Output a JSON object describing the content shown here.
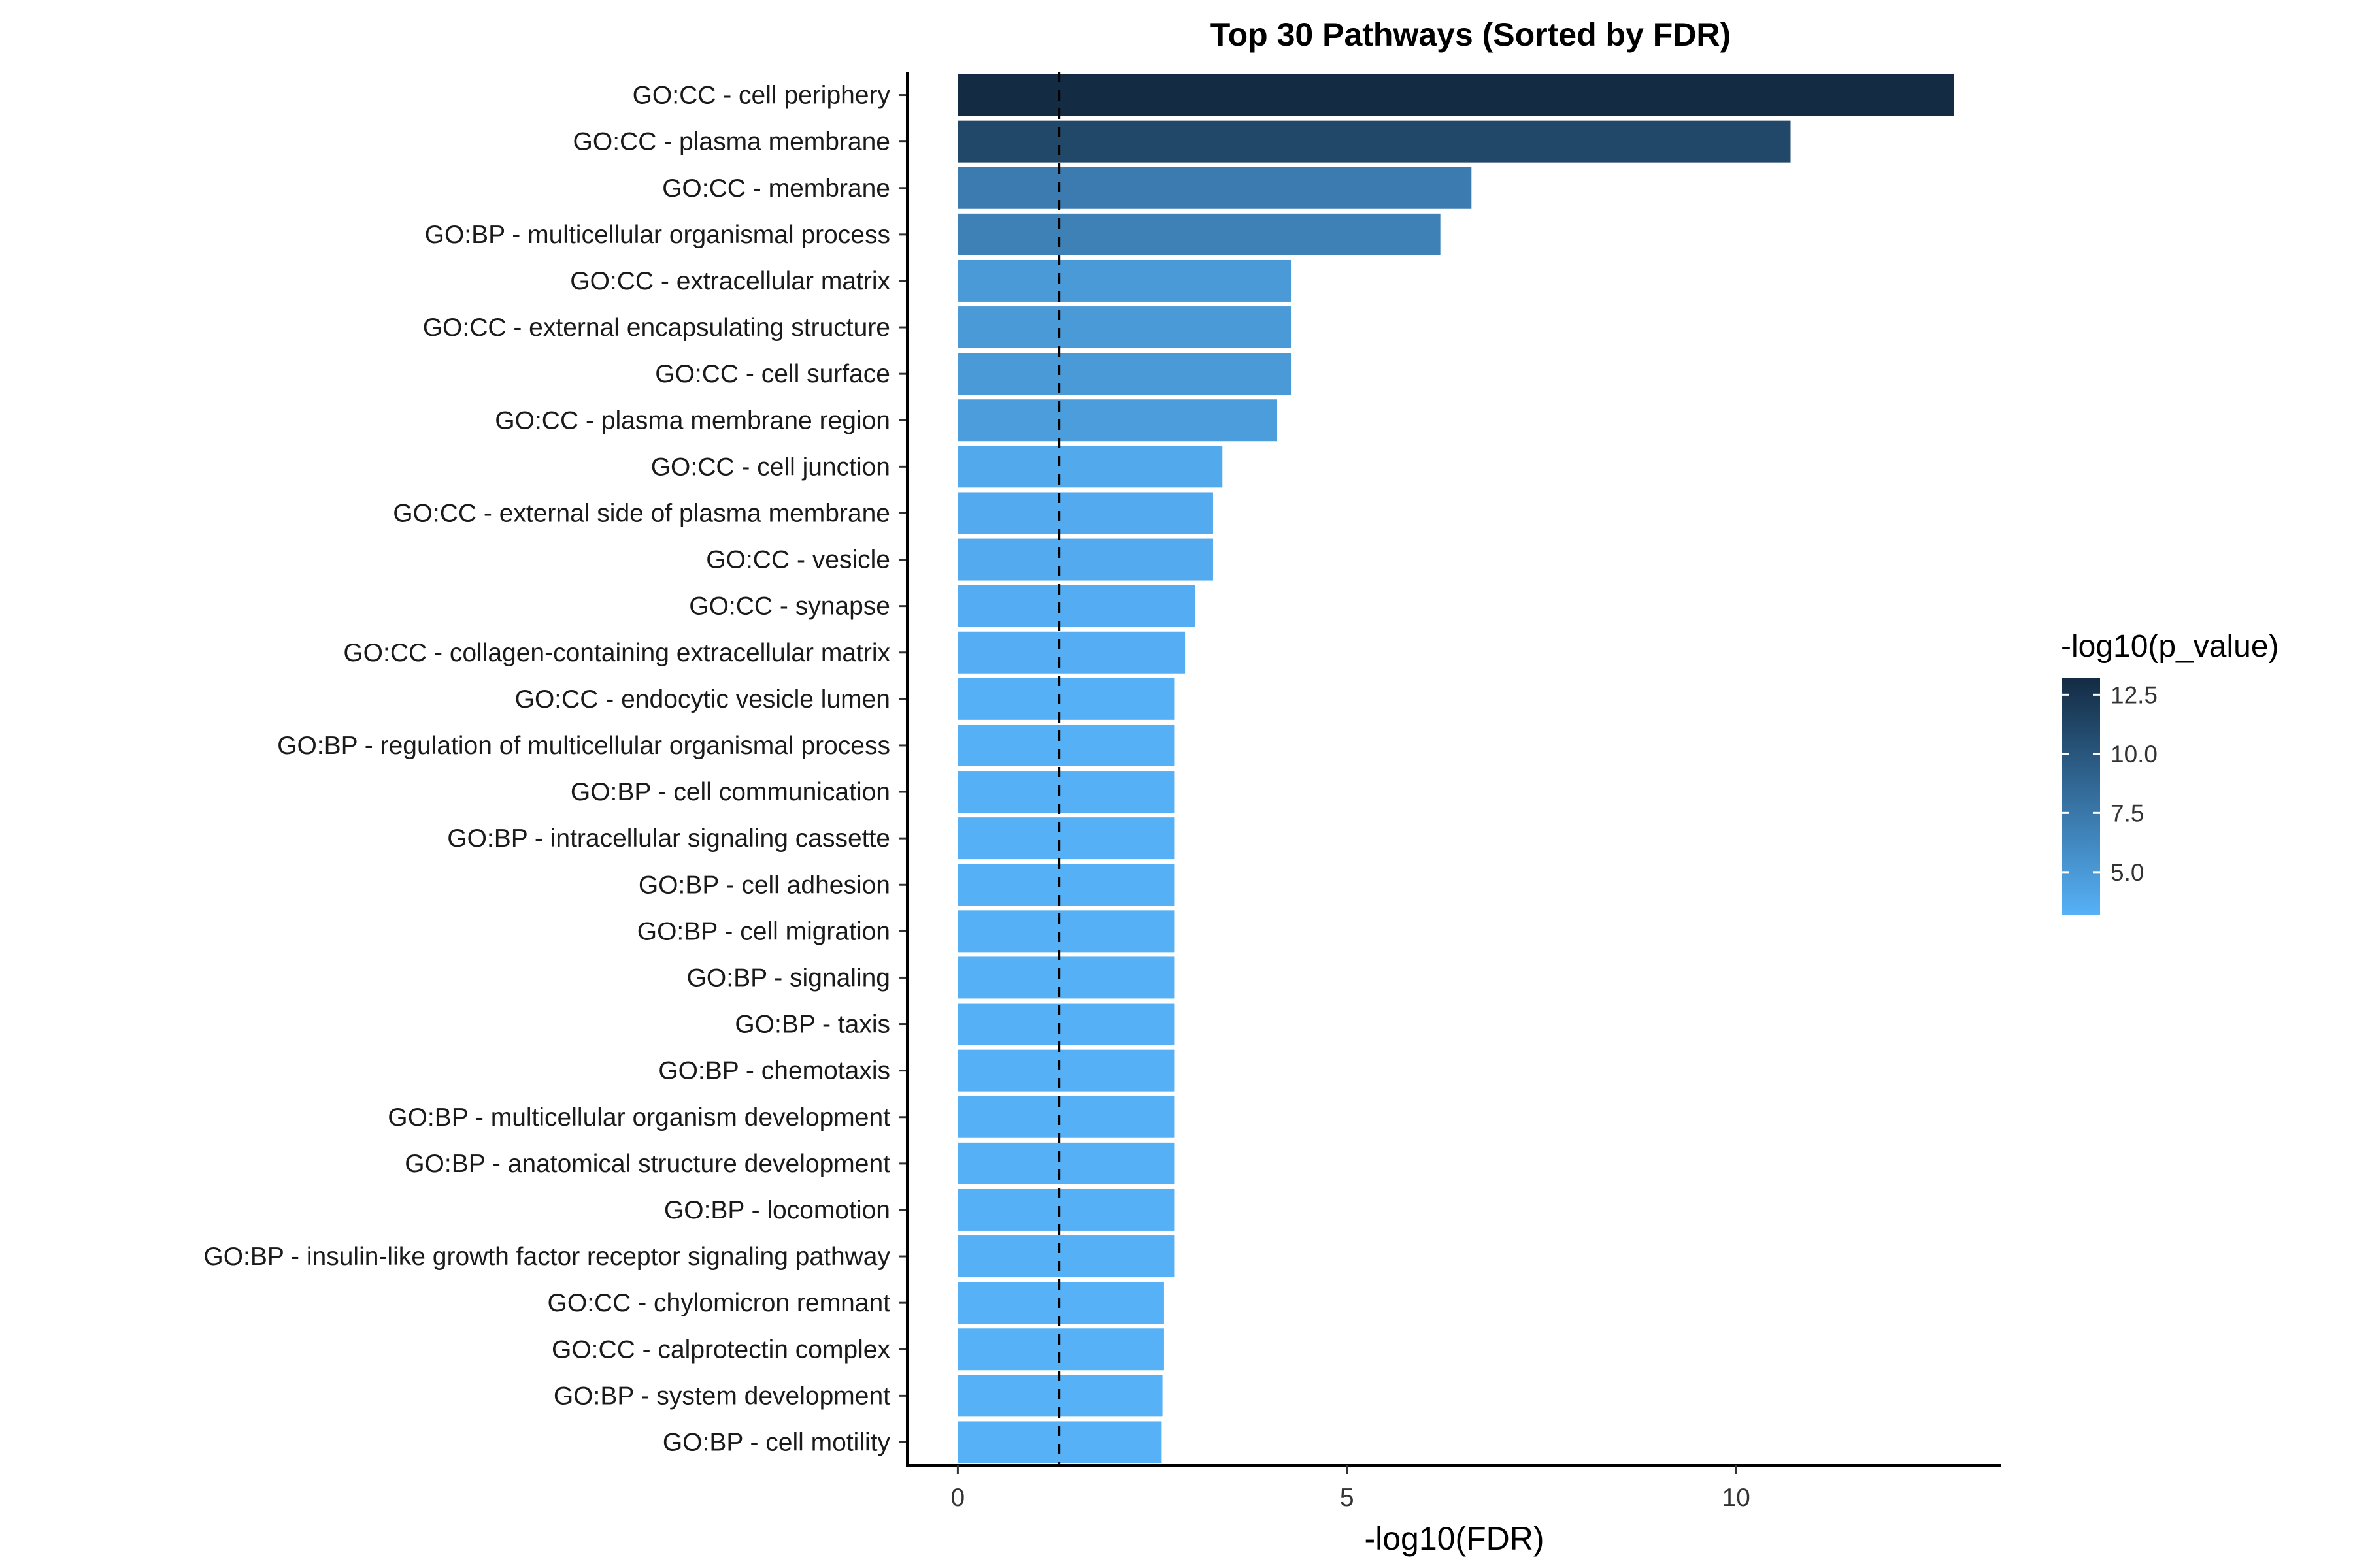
{
  "chart_data": {
    "type": "bar",
    "orientation": "horizontal",
    "title": "Top 30 Pathways (Sorted by FDR)",
    "xlabel": "-log10(FDR)",
    "ylabel": "",
    "xlim": [
      -0.65,
      13.4
    ],
    "x_ticks": [
      0,
      5,
      10
    ],
    "x_tick_labels": [
      "0",
      "5",
      "10"
    ],
    "reference_line": 1.3,
    "grid": false,
    "legend_position": "right",
    "color_scale": {
      "title": "-log10(p_value)",
      "min": 3.2,
      "max": 13.2,
      "low_color": "#56b1f7",
      "high_color": "#132b43",
      "ticks": [
        5.0,
        7.5,
        10.0,
        12.5
      ],
      "tick_labels": [
        "5.0",
        "7.5",
        "10.0",
        "12.5"
      ]
    },
    "categories": [
      "GO:CC - cell periphery",
      "GO:CC - plasma membrane",
      "GO:CC - membrane",
      "GO:BP - multicellular organismal process",
      "GO:CC - extracellular matrix",
      "GO:CC - external encapsulating structure",
      "GO:CC - cell surface",
      "GO:CC - plasma membrane region",
      "GO:CC - cell junction",
      "GO:CC - external side of plasma membrane",
      "GO:CC - vesicle",
      "GO:CC - synapse",
      "GO:CC - collagen-containing extracellular matrix",
      "GO:CC - endocytic vesicle lumen",
      "GO:BP - regulation of multicellular organismal process",
      "GO:BP - cell communication",
      "GO:BP - intracellular signaling cassette",
      "GO:BP - cell adhesion",
      "GO:BP - cell migration",
      "GO:BP - signaling",
      "GO:BP - taxis",
      "GO:BP - chemotaxis",
      "GO:BP - multicellular organism development",
      "GO:BP - anatomical structure development",
      "GO:BP - locomotion",
      "GO:BP - insulin-like growth factor receptor signaling pathway",
      "GO:CC - chylomicron remnant",
      "GO:CC - calprotectin complex",
      "GO:BP - system development",
      "GO:BP - cell motility"
    ],
    "values": [
      12.8,
      10.7,
      6.6,
      6.2,
      4.28,
      4.28,
      4.28,
      4.1,
      3.4,
      3.28,
      3.28,
      3.05,
      2.92,
      2.78,
      2.78,
      2.78,
      2.78,
      2.78,
      2.78,
      2.78,
      2.78,
      2.78,
      2.78,
      2.78,
      2.78,
      2.78,
      2.65,
      2.65,
      2.63,
      2.62
    ],
    "color_values": [
      13.2,
      11.1,
      7.2,
      6.8,
      4.9,
      4.9,
      4.9,
      4.7,
      3.8,
      3.7,
      3.7,
      3.5,
      3.4,
      3.3,
      3.3,
      3.3,
      3.3,
      3.3,
      3.3,
      3.3,
      3.3,
      3.3,
      3.3,
      3.3,
      3.3,
      3.3,
      3.2,
      3.2,
      3.2,
      3.2
    ]
  }
}
